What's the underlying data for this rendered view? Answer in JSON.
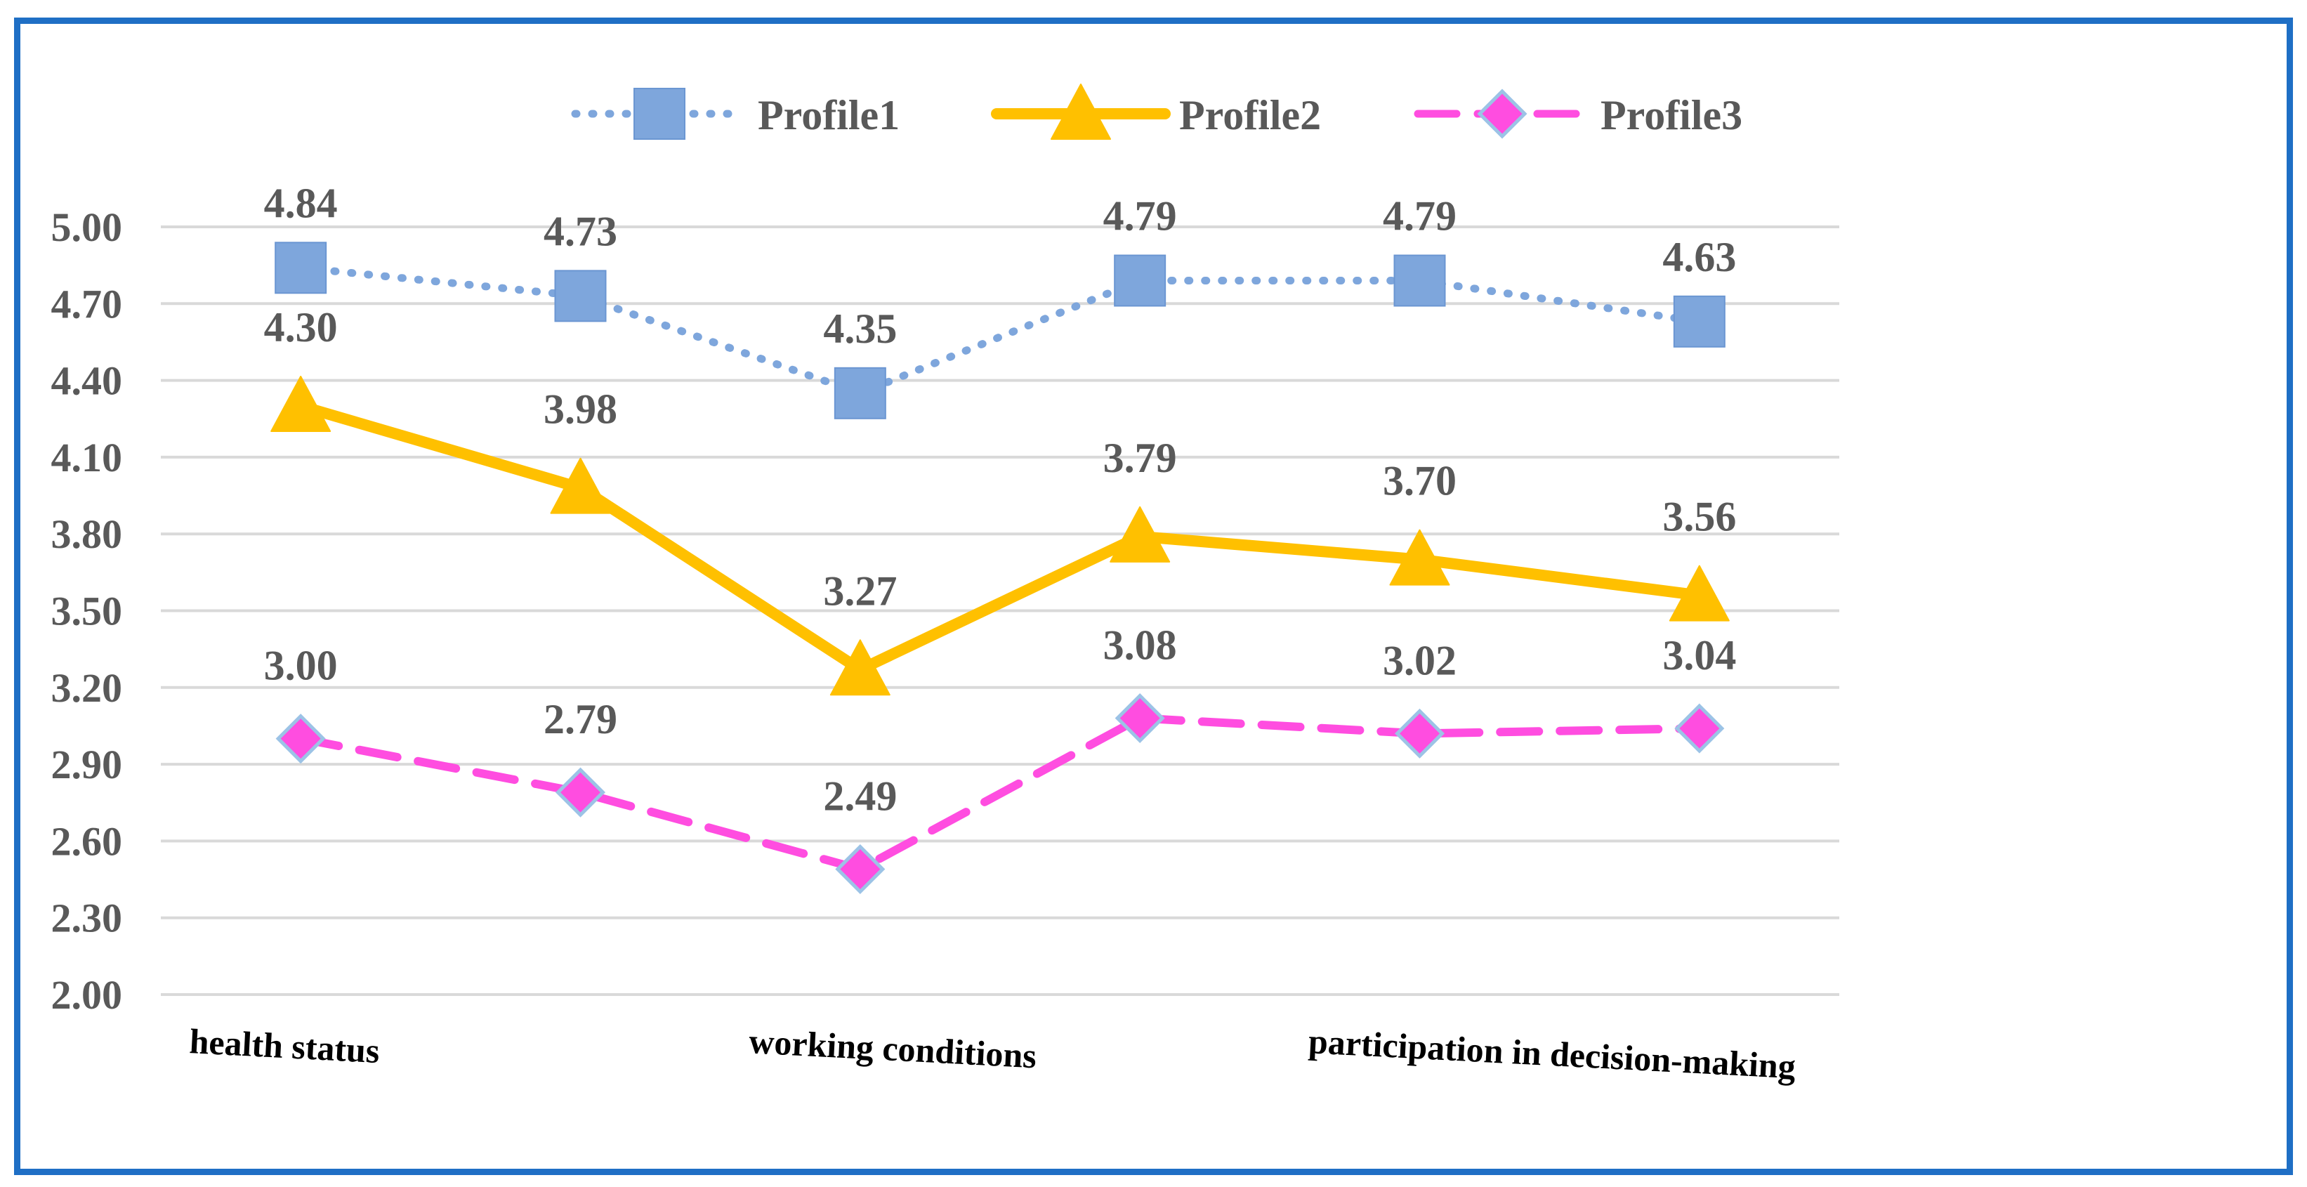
{
  "chart_data": {
    "type": "line",
    "title": "",
    "xlabel": "",
    "ylabel": "",
    "ylim": [
      2.0,
      5.0
    ],
    "yticks": [
      "2.00",
      "2.30",
      "2.60",
      "2.90",
      "3.20",
      "3.50",
      "3.80",
      "4.10",
      "4.40",
      "4.70",
      "5.00"
    ],
    "categories": [
      "health status",
      "",
      "working conditions",
      "",
      "participation in decision-making",
      ""
    ],
    "category_count": 6,
    "grid": true,
    "legend_position": "top-center",
    "series": [
      {
        "name": "Profile1",
        "values": [
          4.84,
          4.73,
          4.35,
          4.79,
          4.79,
          4.63
        ],
        "labels": [
          "4.84",
          "4.73",
          "4.35",
          "4.79",
          "4.79",
          "4.63"
        ],
        "color": "#7ea6dc",
        "line_style": "dotted",
        "marker": "square"
      },
      {
        "name": "Profile2",
        "values": [
          4.3,
          3.98,
          3.27,
          3.79,
          3.7,
          3.56
        ],
        "labels": [
          "4.30",
          "3.98",
          "3.27",
          "3.79",
          "3.70",
          "3.56"
        ],
        "color": "#ffc000",
        "line_style": "solid",
        "marker": "triangle"
      },
      {
        "name": "Profile3",
        "values": [
          3.0,
          2.79,
          2.49,
          3.08,
          3.02,
          3.04
        ],
        "labels": [
          "3.00",
          "2.79",
          "2.49",
          "3.08",
          "3.02",
          "3.04"
        ],
        "color": "#ff4de0",
        "line_style": "dashed",
        "marker": "diamond"
      }
    ]
  },
  "colors": {
    "frame_border": "#1f6fc5",
    "gridline": "#d9d9d9",
    "tick_label": "#595959",
    "data_label": "#595959",
    "category_label": "#000000"
  }
}
